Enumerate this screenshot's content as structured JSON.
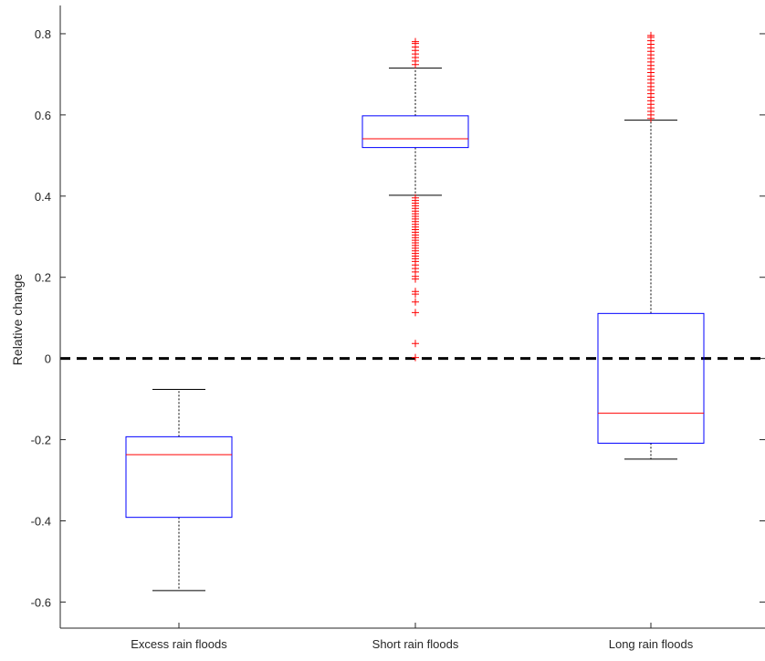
{
  "chart_data": {
    "type": "box",
    "title": "",
    "xlabel": "",
    "ylabel": "Relative change",
    "ylim": [
      -0.6643,
      0.8696
    ],
    "yticks": [
      -0.6,
      -0.4,
      -0.2,
      0,
      0.2,
      0.4,
      0.6,
      0.8
    ],
    "ytick_labels": [
      "-0.6",
      "-0.4",
      "-0.2",
      "0",
      "0.2",
      "0.4",
      "0.6",
      "0.8"
    ],
    "categories": [
      "Excess rain floods",
      "Short rain floods",
      "Long rain floods"
    ],
    "reference_line": {
      "y": 0,
      "style": "dashed",
      "color": "#000000"
    },
    "colors": {
      "box": "#0000ff",
      "median": "#ff0000",
      "whisker": "#000000",
      "outlier": "#ff0000"
    },
    "boxes": [
      {
        "category": "Excess rain floods",
        "whisker_low": -0.5717,
        "q1": -0.3914,
        "median": -0.237,
        "q3": -0.1928,
        "whisker_high": -0.0761,
        "outliers": []
      },
      {
        "category": "Short rain floods",
        "whisker_low": 0.4022,
        "q1": 0.5196,
        "median": 0.5413,
        "q3": 0.5978,
        "whisker_high": 0.7152,
        "outliers": [
          0.0022,
          0.037,
          0.113,
          0.1391,
          0.1587,
          0.1652,
          0.1957,
          0.2022,
          0.213,
          0.2217,
          0.2304,
          0.2391,
          0.2457,
          0.2522,
          0.2587,
          0.2652,
          0.2717,
          0.2783,
          0.2848,
          0.2913,
          0.2978,
          0.3043,
          0.3109,
          0.3174,
          0.3239,
          0.3304,
          0.337,
          0.3435,
          0.35,
          0.3565,
          0.363,
          0.3696,
          0.3761,
          0.3826,
          0.3891,
          0.3957,
          0.7239,
          0.7326,
          0.7413,
          0.75,
          0.7587,
          0.7674,
          0.7761,
          0.7804
        ]
      },
      {
        "category": "Long rain floods",
        "whisker_low": -0.2478,
        "q1": -0.2087,
        "median": -0.1348,
        "q3": 0.1109,
        "whisker_high": 0.587,
        "outliers": [
          0.5913,
          0.6,
          0.6087,
          0.6174,
          0.6261,
          0.6348,
          0.6435,
          0.6522,
          0.6609,
          0.6696,
          0.6783,
          0.687,
          0.6957,
          0.7043,
          0.713,
          0.7217,
          0.7304,
          0.7391,
          0.7478,
          0.7565,
          0.7652,
          0.7739,
          0.7826,
          0.7913,
          0.7957
        ]
      }
    ]
  }
}
